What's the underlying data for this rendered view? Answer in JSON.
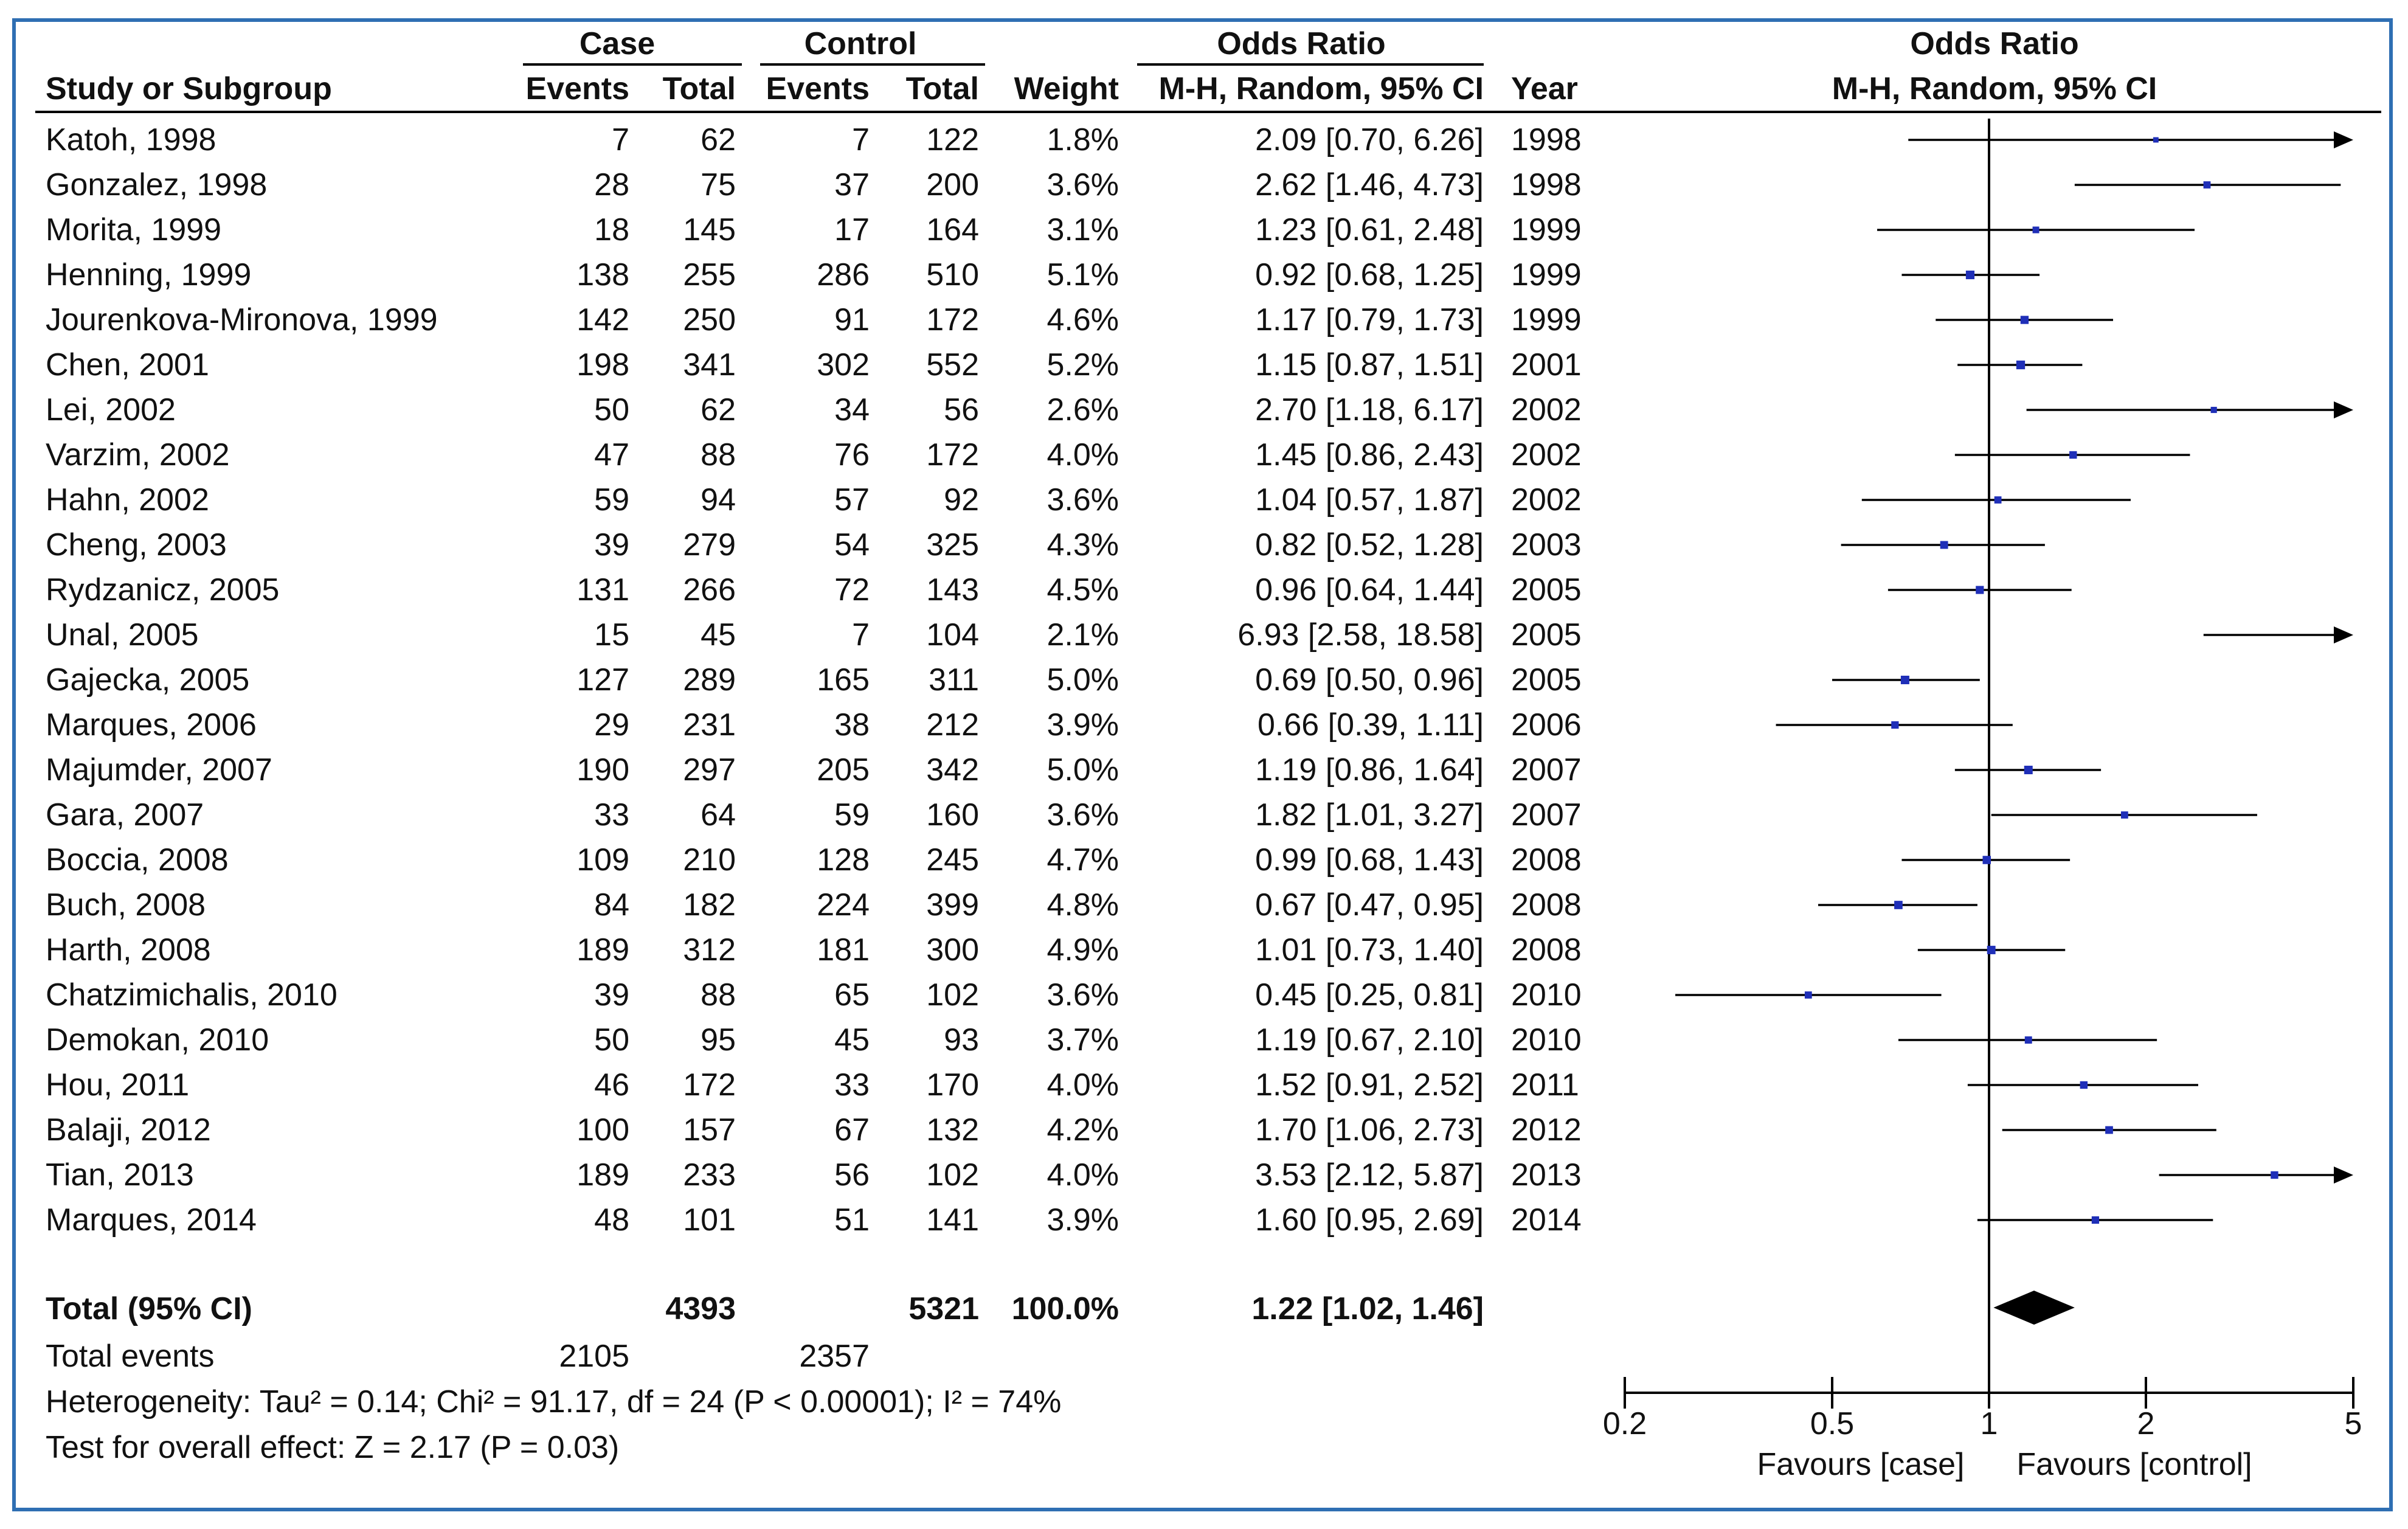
{
  "headers": {
    "case": "Case",
    "control": "Control",
    "odds_ratio": "Odds Ratio",
    "study": "Study or Subgroup",
    "events": "Events",
    "total": "Total",
    "weight": "Weight",
    "ci_method": "M-H, Random, 95% CI",
    "year": "Year",
    "plot_title": "Odds Ratio",
    "plot_method": "M-H, Random, 95% CI"
  },
  "studies": [
    {
      "name": "Katoh, 1998",
      "case_events": "7",
      "case_total": "62",
      "ctrl_events": "7",
      "ctrl_total": "122",
      "weight": "1.8%",
      "ci_text": "2.09 [0.70, 6.26]",
      "year": "1998"
    },
    {
      "name": "Gonzalez, 1998",
      "case_events": "28",
      "case_total": "75",
      "ctrl_events": "37",
      "ctrl_total": "200",
      "weight": "3.6%",
      "ci_text": "2.62 [1.46, 4.73]",
      "year": "1998"
    },
    {
      "name": "Morita, 1999",
      "case_events": "18",
      "case_total": "145",
      "ctrl_events": "17",
      "ctrl_total": "164",
      "weight": "3.1%",
      "ci_text": "1.23 [0.61, 2.48]",
      "year": "1999"
    },
    {
      "name": "Henning, 1999",
      "case_events": "138",
      "case_total": "255",
      "ctrl_events": "286",
      "ctrl_total": "510",
      "weight": "5.1%",
      "ci_text": "0.92 [0.68, 1.25]",
      "year": "1999"
    },
    {
      "name": "Jourenkova-Mironova, 1999",
      "case_events": "142",
      "case_total": "250",
      "ctrl_events": "91",
      "ctrl_total": "172",
      "weight": "4.6%",
      "ci_text": "1.17 [0.79, 1.73]",
      "year": "1999"
    },
    {
      "name": "Chen, 2001",
      "case_events": "198",
      "case_total": "341",
      "ctrl_events": "302",
      "ctrl_total": "552",
      "weight": "5.2%",
      "ci_text": "1.15 [0.87, 1.51]",
      "year": "2001"
    },
    {
      "name": "Lei, 2002",
      "case_events": "50",
      "case_total": "62",
      "ctrl_events": "34",
      "ctrl_total": "56",
      "weight": "2.6%",
      "ci_text": "2.70 [1.18, 6.17]",
      "year": "2002"
    },
    {
      "name": "Varzim, 2002",
      "case_events": "47",
      "case_total": "88",
      "ctrl_events": "76",
      "ctrl_total": "172",
      "weight": "4.0%",
      "ci_text": "1.45 [0.86, 2.43]",
      "year": "2002"
    },
    {
      "name": "Hahn, 2002",
      "case_events": "59",
      "case_total": "94",
      "ctrl_events": "57",
      "ctrl_total": "92",
      "weight": "3.6%",
      "ci_text": "1.04 [0.57, 1.87]",
      "year": "2002"
    },
    {
      "name": "Cheng, 2003",
      "case_events": "39",
      "case_total": "279",
      "ctrl_events": "54",
      "ctrl_total": "325",
      "weight": "4.3%",
      "ci_text": "0.82 [0.52, 1.28]",
      "year": "2003"
    },
    {
      "name": "Rydzanicz, 2005",
      "case_events": "131",
      "case_total": "266",
      "ctrl_events": "72",
      "ctrl_total": "143",
      "weight": "4.5%",
      "ci_text": "0.96 [0.64, 1.44]",
      "year": "2005"
    },
    {
      "name": "Unal, 2005",
      "case_events": "15",
      "case_total": "45",
      "ctrl_events": "7",
      "ctrl_total": "104",
      "weight": "2.1%",
      "ci_text": "6.93 [2.58, 18.58]",
      "year": "2005"
    },
    {
      "name": "Gajecka, 2005",
      "case_events": "127",
      "case_total": "289",
      "ctrl_events": "165",
      "ctrl_total": "311",
      "weight": "5.0%",
      "ci_text": "0.69 [0.50, 0.96]",
      "year": "2005"
    },
    {
      "name": "Marques, 2006",
      "case_events": "29",
      "case_total": "231",
      "ctrl_events": "38",
      "ctrl_total": "212",
      "weight": "3.9%",
      "ci_text": "0.66 [0.39, 1.11]",
      "year": "2006"
    },
    {
      "name": "Majumder, 2007",
      "case_events": "190",
      "case_total": "297",
      "ctrl_events": "205",
      "ctrl_total": "342",
      "weight": "5.0%",
      "ci_text": "1.19 [0.86, 1.64]",
      "year": "2007"
    },
    {
      "name": "Gara, 2007",
      "case_events": "33",
      "case_total": "64",
      "ctrl_events": "59",
      "ctrl_total": "160",
      "weight": "3.6%",
      "ci_text": "1.82 [1.01, 3.27]",
      "year": "2007"
    },
    {
      "name": "Boccia, 2008",
      "case_events": "109",
      "case_total": "210",
      "ctrl_events": "128",
      "ctrl_total": "245",
      "weight": "4.7%",
      "ci_text": "0.99 [0.68, 1.43]",
      "year": "2008"
    },
    {
      "name": "Buch, 2008",
      "case_events": "84",
      "case_total": "182",
      "ctrl_events": "224",
      "ctrl_total": "399",
      "weight": "4.8%",
      "ci_text": "0.67 [0.47, 0.95]",
      "year": "2008"
    },
    {
      "name": "Harth, 2008",
      "case_events": "189",
      "case_total": "312",
      "ctrl_events": "181",
      "ctrl_total": "300",
      "weight": "4.9%",
      "ci_text": "1.01 [0.73, 1.40]",
      "year": "2008"
    },
    {
      "name": "Chatzimichalis, 2010",
      "case_events": "39",
      "case_total": "88",
      "ctrl_events": "65",
      "ctrl_total": "102",
      "weight": "3.6%",
      "ci_text": "0.45 [0.25, 0.81]",
      "year": "2010"
    },
    {
      "name": "Demokan, 2010",
      "case_events": "50",
      "case_total": "95",
      "ctrl_events": "45",
      "ctrl_total": "93",
      "weight": "3.7%",
      "ci_text": "1.19 [0.67, 2.10]",
      "year": "2010"
    },
    {
      "name": "Hou, 2011",
      "case_events": "46",
      "case_total": "172",
      "ctrl_events": "33",
      "ctrl_total": "170",
      "weight": "4.0%",
      "ci_text": "1.52 [0.91, 2.52]",
      "year": "2011"
    },
    {
      "name": "Balaji, 2012",
      "case_events": "100",
      "case_total": "157",
      "ctrl_events": "67",
      "ctrl_total": "132",
      "weight": "4.2%",
      "ci_text": "1.70 [1.06, 2.73]",
      "year": "2012"
    },
    {
      "name": "Tian, 2013",
      "case_events": "189",
      "case_total": "233",
      "ctrl_events": "56",
      "ctrl_total": "102",
      "weight": "4.0%",
      "ci_text": "3.53 [2.12, 5.87]",
      "year": "2013"
    },
    {
      "name": "Marques, 2014",
      "case_events": "48",
      "case_total": "101",
      "ctrl_events": "51",
      "ctrl_total": "141",
      "weight": "3.9%",
      "ci_text": "1.60 [0.95, 2.69]",
      "year": "2014"
    }
  ],
  "total": {
    "label": "Total (95% CI)",
    "case_total": "4393",
    "ctrl_total": "5321",
    "weight": "100.0%",
    "ci_text": "1.22 [1.02, 1.46]"
  },
  "total_events": {
    "label": "Total events",
    "case": "2105",
    "control": "2357"
  },
  "heterogeneity": "Heterogeneity: Tau² = 0.14; Chi² = 91.17, df = 24 (P < 0.00001); I² = 74%",
  "overall_effect": "Test for overall effect: Z = 2.17 (P = 0.03)",
  "axis": {
    "ticks": [
      "0.2",
      "0.5",
      "1",
      "2",
      "5"
    ],
    "favours_left": "Favours [case]",
    "favours_right": "Favours [control]"
  },
  "colors": {
    "frame": "#2f6fb3",
    "point": "#1f2fb8",
    "line": "#000000"
  },
  "chart_data": {
    "type": "forest",
    "title": "Odds Ratio",
    "subtitle": "M-H, Random, 95% CI",
    "scale": "log",
    "xlim": [
      0.2,
      5
    ],
    "reference_line": 1,
    "xlabel_left": "Favours [case]",
    "xlabel_right": "Favours [control]",
    "x_ticks": [
      0.2,
      0.5,
      1,
      2,
      5
    ],
    "studies": [
      {
        "label": "Katoh, 1998",
        "or": 2.09,
        "lo": 0.7,
        "hi": 6.26,
        "weight": 1.8
      },
      {
        "label": "Gonzalez, 1998",
        "or": 2.62,
        "lo": 1.46,
        "hi": 4.73,
        "weight": 3.6
      },
      {
        "label": "Morita, 1999",
        "or": 1.23,
        "lo": 0.61,
        "hi": 2.48,
        "weight": 3.1
      },
      {
        "label": "Henning, 1999",
        "or": 0.92,
        "lo": 0.68,
        "hi": 1.25,
        "weight": 5.1
      },
      {
        "label": "Jourenkova-Mironova, 1999",
        "or": 1.17,
        "lo": 0.79,
        "hi": 1.73,
        "weight": 4.6
      },
      {
        "label": "Chen, 2001",
        "or": 1.15,
        "lo": 0.87,
        "hi": 1.51,
        "weight": 5.2
      },
      {
        "label": "Lei, 2002",
        "or": 2.7,
        "lo": 1.18,
        "hi": 6.17,
        "weight": 2.6
      },
      {
        "label": "Varzim, 2002",
        "or": 1.45,
        "lo": 0.86,
        "hi": 2.43,
        "weight": 4.0
      },
      {
        "label": "Hahn, 2002",
        "or": 1.04,
        "lo": 0.57,
        "hi": 1.87,
        "weight": 3.6
      },
      {
        "label": "Cheng, 2003",
        "or": 0.82,
        "lo": 0.52,
        "hi": 1.28,
        "weight": 4.3
      },
      {
        "label": "Rydzanicz, 2005",
        "or": 0.96,
        "lo": 0.64,
        "hi": 1.44,
        "weight": 4.5
      },
      {
        "label": "Unal, 2005",
        "or": 6.93,
        "lo": 2.58,
        "hi": 18.58,
        "weight": 2.1
      },
      {
        "label": "Gajecka, 2005",
        "or": 0.69,
        "lo": 0.5,
        "hi": 0.96,
        "weight": 5.0
      },
      {
        "label": "Marques, 2006",
        "or": 0.66,
        "lo": 0.39,
        "hi": 1.11,
        "weight": 3.9
      },
      {
        "label": "Majumder, 2007",
        "or": 1.19,
        "lo": 0.86,
        "hi": 1.64,
        "weight": 5.0
      },
      {
        "label": "Gara, 2007",
        "or": 1.82,
        "lo": 1.01,
        "hi": 3.27,
        "weight": 3.6
      },
      {
        "label": "Boccia, 2008",
        "or": 0.99,
        "lo": 0.68,
        "hi": 1.43,
        "weight": 4.7
      },
      {
        "label": "Buch, 2008",
        "or": 0.67,
        "lo": 0.47,
        "hi": 0.95,
        "weight": 4.8
      },
      {
        "label": "Harth, 2008",
        "or": 1.01,
        "lo": 0.73,
        "hi": 1.4,
        "weight": 4.9
      },
      {
        "label": "Chatzimichalis, 2010",
        "or": 0.45,
        "lo": 0.25,
        "hi": 0.81,
        "weight": 3.6
      },
      {
        "label": "Demokan, 2010",
        "or": 1.19,
        "lo": 0.67,
        "hi": 2.1,
        "weight": 3.7
      },
      {
        "label": "Hou, 2011",
        "or": 1.52,
        "lo": 0.91,
        "hi": 2.52,
        "weight": 4.0
      },
      {
        "label": "Balaji, 2012",
        "or": 1.7,
        "lo": 1.06,
        "hi": 2.73,
        "weight": 4.2
      },
      {
        "label": "Tian, 2013",
        "or": 3.53,
        "lo": 2.12,
        "hi": 5.87,
        "weight": 4.0
      },
      {
        "label": "Marques, 2014",
        "or": 1.6,
        "lo": 0.95,
        "hi": 2.69,
        "weight": 3.9
      }
    ],
    "pooled": {
      "label": "Total (95% CI)",
      "or": 1.22,
      "lo": 1.02,
      "hi": 1.46
    }
  }
}
